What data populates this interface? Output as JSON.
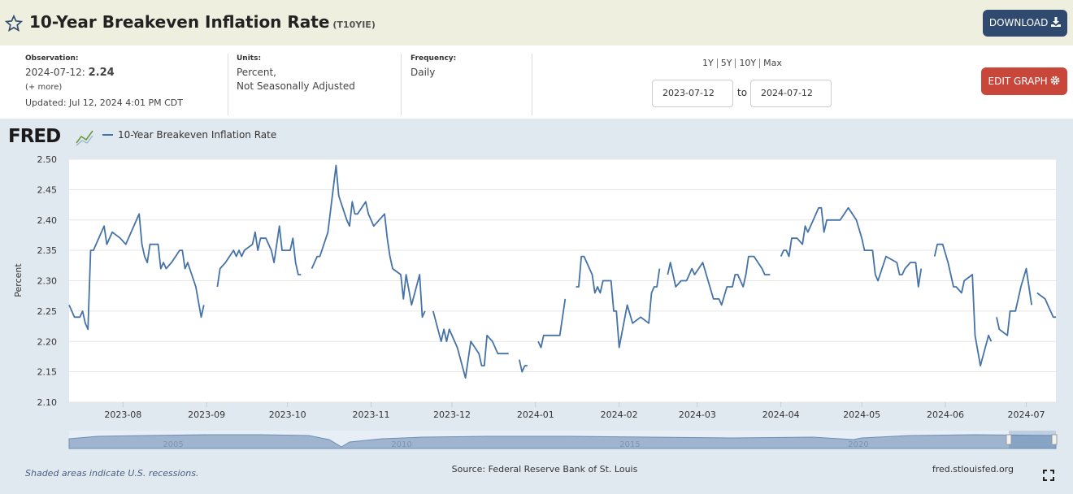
{
  "header": {
    "title": "10-Year Breakeven Inflation Rate",
    "ticker": "(T10YIE)",
    "download": "DOWNLOAD"
  },
  "info": {
    "observation_label": "Observation:",
    "observation_date": "2024-07-12:",
    "observation_value": 2.24,
    "more": "(+ more)",
    "updated": "Updated: Jul 12, 2024 4:01 PM CDT",
    "units_label": "Units:",
    "units_line1": "Percent,",
    "units_line2": "Not Seasonally Adjusted",
    "frequency_label": "Frequency:",
    "frequency": "Daily"
  },
  "controls": {
    "ranges": [
      "1Y",
      "5Y",
      "10Y",
      "Max"
    ],
    "start": "2023-07-12",
    "to": "to",
    "end": "2024-07-12",
    "edit": "EDIT GRAPH"
  },
  "chart_data": {
    "type": "line",
    "logo": "FRED",
    "ylabel": "Percent",
    "grid": true,
    "legend": "top-left",
    "xlim": [
      "2023-07-12",
      "2024-07-12"
    ],
    "xticks": [
      {
        "value": "2023-08-01",
        "label": "2023-08"
      },
      {
        "value": "2023-09-01",
        "label": "2023-09"
      },
      {
        "value": "2023-10-01",
        "label": "2023-10"
      },
      {
        "value": "2023-11-01",
        "label": "2023-11"
      },
      {
        "value": "2023-12-01",
        "label": "2023-12"
      },
      {
        "value": "2024-01-01",
        "label": "2024-01"
      },
      {
        "value": "2024-02-01",
        "label": "2024-02"
      },
      {
        "value": "2024-03-01",
        "label": "2024-03"
      },
      {
        "value": "2024-04-01",
        "label": "2024-04"
      },
      {
        "value": "2024-05-01",
        "label": "2024-05"
      },
      {
        "value": "2024-06-01",
        "label": "2024-06"
      },
      {
        "value": "2024-07-01",
        "label": "2024-07"
      }
    ],
    "ylim": [
      2.1,
      2.5
    ],
    "yticks": [
      {
        "value": 2.1,
        "label": "2.10"
      },
      {
        "value": 2.15,
        "label": "2.15"
      },
      {
        "value": 2.2,
        "label": "2.20"
      },
      {
        "value": 2.25,
        "label": "2.25"
      },
      {
        "value": 2.3,
        "label": "2.30"
      },
      {
        "value": 2.35,
        "label": "2.35"
      },
      {
        "value": 2.4,
        "label": "2.40"
      },
      {
        "value": 2.45,
        "label": "2.45"
      },
      {
        "value": 2.5,
        "label": "2.50"
      }
    ],
    "x": [
      "2023-07-12",
      "2023-07-14",
      "2023-07-16",
      "2023-07-17",
      "2023-07-18",
      "2023-07-19",
      "2023-07-20",
      "2023-07-21",
      "2023-07-25",
      "2023-07-26",
      "2023-07-28",
      "2023-07-31",
      "2023-08-02",
      "2023-08-07",
      "2023-08-08",
      "2023-08-09",
      "2023-08-10",
      "2023-08-11",
      "2023-08-14",
      "2023-08-15",
      "2023-08-16",
      "2023-08-17",
      "2023-08-19",
      "2023-08-22",
      "2023-08-23",
      "2023-08-24",
      "2023-08-25",
      "2023-08-28",
      "2023-08-30",
      "2023-08-31",
      "2023-09-01",
      "2023-09-05",
      "2023-09-06",
      "2023-09-08",
      "2023-09-11",
      "2023-09-12",
      "2023-09-13",
      "2023-09-14",
      "2023-09-15",
      "2023-09-18",
      "2023-09-19",
      "2023-09-20",
      "2023-09-21",
      "2023-09-23",
      "2023-09-25",
      "2023-09-26",
      "2023-09-28",
      "2023-09-29",
      "2023-10-02",
      "2023-10-03",
      "2023-10-04",
      "2023-10-05",
      "2023-10-06",
      "2023-10-09",
      "2023-10-10",
      "2023-10-12",
      "2023-10-13",
      "2023-10-16",
      "2023-10-19",
      "2023-10-20",
      "2023-10-23",
      "2023-10-24",
      "2023-10-25",
      "2023-10-26",
      "2023-10-27",
      "2023-10-30",
      "2023-10-31",
      "2023-11-02",
      "2023-11-06",
      "2023-11-07",
      "2023-11-08",
      "2023-11-09",
      "2023-11-12",
      "2023-11-13",
      "2023-11-14",
      "2023-11-16",
      "2023-11-19",
      "2023-11-20",
      "2023-11-21",
      "2023-11-23",
      "2023-11-24",
      "2023-11-27",
      "2023-11-28",
      "2023-11-29",
      "2023-11-30",
      "2023-12-03",
      "2023-12-06",
      "2023-12-08",
      "2023-12-11",
      "2023-12-12",
      "2023-12-13",
      "2023-12-14",
      "2023-12-16",
      "2023-12-18",
      "2023-12-22",
      "2023-12-25",
      "2023-12-26",
      "2023-12-27",
      "2023-12-28",
      "2023-12-29",
      "2024-01-01",
      "2024-01-02",
      "2024-01-03",
      "2024-01-04",
      "2024-01-10",
      "2024-01-12",
      "2024-01-15",
      "2024-01-16",
      "2024-01-17",
      "2024-01-18",
      "2024-01-19",
      "2024-01-22",
      "2024-01-23",
      "2024-01-24",
      "2024-01-25",
      "2024-01-26",
      "2024-01-29",
      "2024-01-30",
      "2024-01-31",
      "2024-02-01",
      "2024-02-04",
      "2024-02-06",
      "2024-02-09",
      "2024-02-12",
      "2024-02-13",
      "2024-02-14",
      "2024-02-15",
      "2024-02-16",
      "2024-02-17",
      "2024-02-19",
      "2024-02-20",
      "2024-02-22",
      "2024-02-24",
      "2024-02-26",
      "2024-02-28",
      "2024-02-29",
      "2024-03-03",
      "2024-03-07",
      "2024-03-09",
      "2024-03-10",
      "2024-03-12",
      "2024-03-14",
      "2024-03-15",
      "2024-03-16",
      "2024-03-18",
      "2024-03-19",
      "2024-03-20",
      "2024-03-22",
      "2024-03-25",
      "2024-03-26",
      "2024-03-28",
      "2024-03-29",
      "2024-04-01",
      "2024-04-02",
      "2024-04-03",
      "2024-04-04",
      "2024-04-05",
      "2024-04-07",
      "2024-04-09",
      "2024-04-10",
      "2024-04-11",
      "2024-04-13",
      "2024-04-15",
      "2024-04-16",
      "2024-04-17",
      "2024-04-18",
      "2024-04-23",
      "2024-04-26",
      "2024-04-29",
      "2024-05-01",
      "2024-05-02",
      "2024-05-05",
      "2024-05-06",
      "2024-05-07",
      "2024-05-10",
      "2024-05-14",
      "2024-05-15",
      "2024-05-16",
      "2024-05-17",
      "2024-05-19",
      "2024-05-21",
      "2024-05-22",
      "2024-05-23",
      "2024-05-27",
      "2024-05-28",
      "2024-05-29",
      "2024-05-31",
      "2024-06-02",
      "2024-06-04",
      "2024-06-05",
      "2024-06-07",
      "2024-06-08",
      "2024-06-11",
      "2024-06-12",
      "2024-06-14",
      "2024-06-17",
      "2024-06-18",
      "2024-06-19",
      "2024-06-20",
      "2024-06-21",
      "2024-06-24",
      "2024-06-25",
      "2024-06-27",
      "2024-06-29",
      "2024-07-01",
      "2024-07-02",
      "2024-07-03",
      "2024-07-04",
      "2024-07-05",
      "2024-07-08",
      "2024-07-09",
      "2024-07-10",
      "2024-07-11",
      "2024-07-12"
    ],
    "series": [
      {
        "name": "10-Year Breakeven Inflation Rate",
        "color": "#4572a7",
        "values": [
          2.26,
          2.24,
          2.24,
          2.25,
          2.23,
          2.22,
          2.35,
          2.35,
          2.39,
          2.36,
          2.38,
          2.37,
          2.36,
          2.41,
          2.36,
          2.34,
          2.33,
          2.36,
          2.36,
          2.32,
          2.33,
          2.32,
          2.33,
          2.35,
          2.35,
          2.32,
          2.33,
          2.29,
          2.24,
          2.26,
          null,
          2.29,
          2.32,
          2.33,
          2.35,
          2.34,
          2.35,
          2.34,
          2.35,
          2.36,
          2.38,
          2.35,
          2.37,
          2.37,
          2.35,
          2.33,
          2.39,
          2.35,
          2.35,
          2.37,
          2.33,
          2.31,
          2.31,
          null,
          2.32,
          2.34,
          2.34,
          2.38,
          2.49,
          2.44,
          2.4,
          2.39,
          2.43,
          2.41,
          2.41,
          2.43,
          2.41,
          2.39,
          2.41,
          2.37,
          2.34,
          2.32,
          2.31,
          2.27,
          2.31,
          2.26,
          2.31,
          2.24,
          2.25,
          null,
          2.25,
          2.2,
          2.22,
          2.2,
          2.22,
          2.19,
          2.14,
          2.2,
          2.18,
          2.16,
          2.16,
          2.21,
          2.2,
          2.18,
          2.18,
          null,
          2.17,
          2.15,
          2.16,
          2.16,
          null,
          2.2,
          2.19,
          2.21,
          2.21,
          2.27,
          null,
          2.29,
          2.29,
          2.34,
          2.34,
          2.31,
          2.28,
          2.29,
          2.28,
          2.3,
          2.3,
          2.25,
          2.25,
          2.19,
          2.26,
          2.23,
          2.24,
          2.23,
          2.28,
          2.29,
          2.29,
          2.32,
          null,
          2.31,
          2.33,
          2.29,
          2.3,
          2.3,
          2.32,
          2.31,
          2.33,
          2.27,
          2.27,
          2.26,
          2.29,
          2.29,
          2.31,
          2.31,
          2.29,
          2.31,
          2.34,
          2.34,
          2.32,
          2.31,
          2.31,
          null,
          2.34,
          2.35,
          2.35,
          2.34,
          2.37,
          2.37,
          2.36,
          2.39,
          2.38,
          2.4,
          2.42,
          2.42,
          2.38,
          2.4,
          2.4,
          2.42,
          2.4,
          2.37,
          2.35,
          2.35,
          2.31,
          2.3,
          2.34,
          2.33,
          2.31,
          2.31,
          2.32,
          2.33,
          2.33,
          2.29,
          2.32,
          null,
          2.34,
          2.36,
          2.36,
          2.33,
          2.29,
          2.29,
          2.28,
          2.3,
          2.31,
          2.21,
          2.16,
          2.21,
          2.2,
          null,
          2.24,
          2.22,
          2.21,
          2.25,
          2.25,
          2.29,
          2.32,
          2.29,
          2.26,
          null,
          2.28,
          2.27,
          2.26,
          2.25,
          2.24,
          2.24
        ]
      }
    ],
    "navigator_labels": [
      "2005",
      "2010",
      "2015",
      "2020"
    ]
  },
  "footer": {
    "recessions": "Shaded areas indicate U.S. recessions.",
    "source": "Source: Federal Reserve Bank of St. Louis",
    "site": "fred.stlouisfed.org"
  }
}
